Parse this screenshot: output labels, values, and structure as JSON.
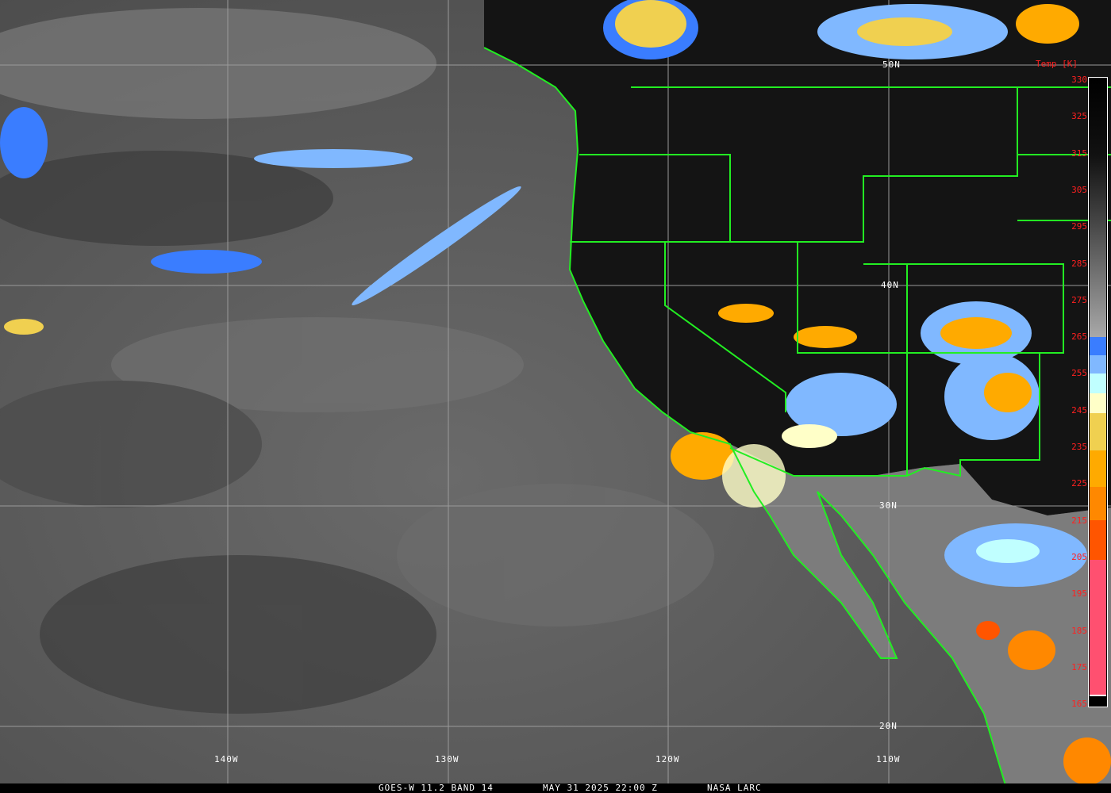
{
  "caption": {
    "satellite": "GOES-W 11.2 BAND 14",
    "datetime": "MAY 31 2025 22:00 Z",
    "source": "NASA LARC"
  },
  "latitude_labels": [
    "50N",
    "40N",
    "30N",
    "20N"
  ],
  "longitude_labels": [
    "140W",
    "130W",
    "120W",
    "110W"
  ],
  "colorbar": {
    "title": "Temp [K]",
    "ticks": [
      "330",
      "325",
      "315",
      "305",
      "295",
      "285",
      "275",
      "265",
      "255",
      "245",
      "235",
      "225",
      "215",
      "205",
      "195",
      "185",
      "175",
      "165"
    ],
    "colors": {
      "warm_gradient": [
        "#000000",
        "#a8a8a8"
      ],
      "255": "#3a7dff",
      "250": "#80b8ff",
      "245": "#c0ffff",
      "240": "#ffffc8",
      "235": "#f0d050",
      "225": "#ffaa00",
      "215": "#ff8800",
      "205": "#ff5500",
      "195": "#ff5070"
    }
  },
  "colors": {
    "borders": "#22ee22",
    "gridlines": "#9a9a9a",
    "labels": "#ffffff",
    "scale_labels": "#ff2020"
  }
}
